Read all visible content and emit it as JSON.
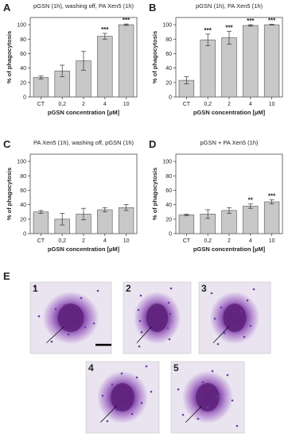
{
  "chart_data": [
    {
      "type": "bar",
      "panel": "A",
      "title": "pGSN (1h), washing off, PA Xen5 (1h)",
      "x_label": "pGSN concentration [µM]",
      "y_label": "% of phagocytosis",
      "categories": [
        "CT",
        "0,2",
        "2",
        "4",
        "10"
      ],
      "values": [
        27,
        36,
        50,
        84,
        100
      ],
      "errors": [
        2,
        8,
        13,
        4,
        1
      ],
      "annotations": [
        null,
        null,
        null,
        "***",
        "***"
      ],
      "color": "#c8c8c8",
      "ylim": [
        0,
        110
      ],
      "yticks": [
        0,
        20,
        40,
        60,
        80,
        100
      ]
    },
    {
      "type": "bar",
      "panel": "B",
      "title": "pGSN (1h), PA Xen5 (1h)",
      "x_label": "pGSN concentration [µM]",
      "y_label": "% of phagocytosis",
      "categories": [
        "CT",
        "0,2",
        "2",
        "4",
        "10"
      ],
      "values": [
        23,
        79,
        82,
        99,
        100
      ],
      "errors": [
        5,
        8,
        9,
        1,
        0.5
      ],
      "annotations": [
        null,
        "***",
        "***",
        "***",
        "***"
      ],
      "color": "#c8c8c8",
      "ylim": [
        0,
        110
      ],
      "yticks": [
        0,
        20,
        40,
        60,
        80,
        100
      ]
    },
    {
      "type": "bar",
      "panel": "C",
      "title": "PA Xen5 (1h), washing off, pGSN (1h)",
      "x_label": "pGSN concentration [µM]",
      "y_label": "% of phagocytosis",
      "categories": [
        "CT",
        "0,2",
        "2",
        "4",
        "10"
      ],
      "values": [
        30,
        20,
        27,
        33,
        36
      ],
      "errors": [
        2,
        8,
        8,
        3,
        4
      ],
      "annotations": [
        null,
        null,
        null,
        null,
        null
      ],
      "color": "#c8c8c8",
      "ylim": [
        0,
        110
      ],
      "yticks": [
        0,
        20,
        40,
        60,
        80,
        100
      ]
    },
    {
      "type": "bar",
      "panel": "D",
      "title": "pGSN + PA Xen5 (1h)",
      "x_label": "pGSN concentration [µM]",
      "y_label": "% of phagocytosis",
      "categories": [
        "CT",
        "0,2",
        "2",
        "4",
        "10"
      ],
      "values": [
        26,
        27,
        32,
        38,
        44
      ],
      "errors": [
        1,
        6,
        4,
        3,
        3
      ],
      "annotations": [
        null,
        null,
        null,
        "**",
        "***"
      ],
      "color": "#c8c8c8",
      "ylim": [
        0,
        110
      ],
      "yticks": [
        0,
        20,
        40,
        60,
        80,
        100
      ]
    }
  ],
  "images": {
    "panel": "E",
    "labels": [
      "1",
      "2",
      "3",
      "4",
      "5"
    ]
  }
}
